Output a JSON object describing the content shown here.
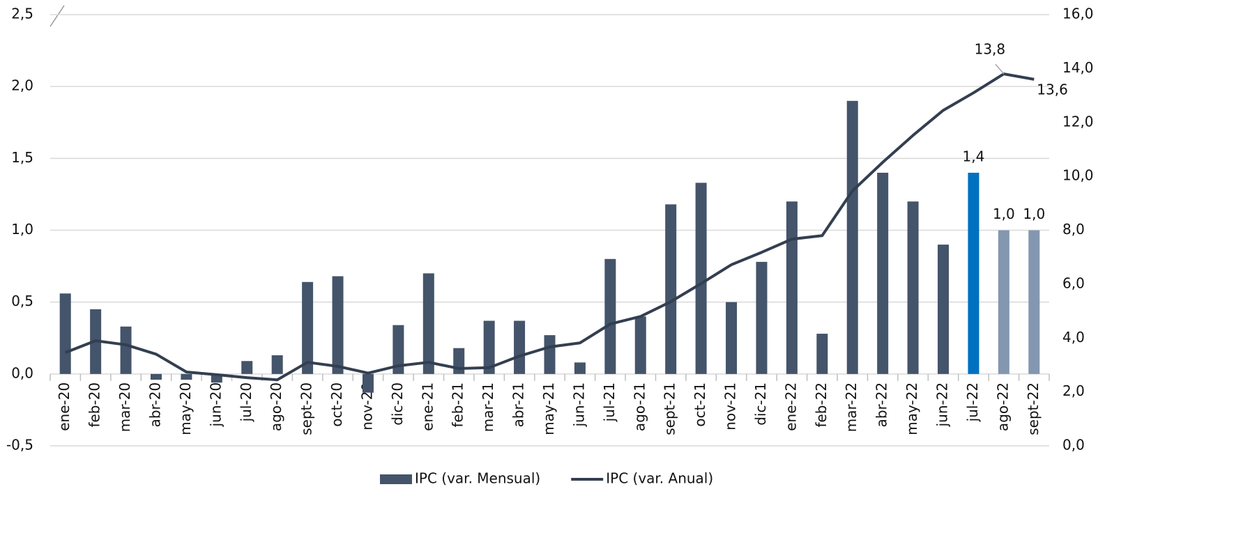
{
  "chart_data": {
    "type": "bar",
    "categories": [
      "ene-20",
      "feb-20",
      "mar-20",
      "abr-20",
      "may-20",
      "jun-20",
      "jul-20",
      "ago-20",
      "sept-20",
      "oct-20",
      "nov-20",
      "dic-20",
      "ene-21",
      "feb-21",
      "mar-21",
      "abr-21",
      "may-21",
      "jun-21",
      "jul-21",
      "ago-21",
      "sept-21",
      "oct-21",
      "nov-21",
      "dic-21",
      "ene-22",
      "feb-22",
      "mar-22",
      "abr-22",
      "may-22",
      "jun-22",
      "jul-22",
      "ago-22",
      "sept-22"
    ],
    "series": [
      {
        "name": "IPC (var. Mensual)",
        "type": "bar",
        "axis": "y",
        "color": "#44546a",
        "colors": [
          "#44546a",
          "#44546a",
          "#44546a",
          "#44546a",
          "#44546a",
          "#44546a",
          "#44546a",
          "#44546a",
          "#44546a",
          "#44546a",
          "#44546a",
          "#44546a",
          "#44546a",
          "#44546a",
          "#44546a",
          "#44546a",
          "#44546a",
          "#44546a",
          "#44546a",
          "#44546a",
          "#44546a",
          "#44546a",
          "#44546a",
          "#44546a",
          "#44546a",
          "#44546a",
          "#44546a",
          "#44546a",
          "#44546a",
          "#44546a",
          "#0070c0",
          "#8497b0",
          "#8497b0"
        ],
        "values": [
          0.56,
          0.45,
          0.33,
          -0.04,
          -0.04,
          -0.06,
          0.09,
          0.13,
          0.64,
          0.68,
          -0.13,
          0.34,
          0.7,
          0.18,
          0.37,
          0.37,
          0.27,
          0.08,
          0.8,
          0.4,
          1.18,
          1.33,
          0.5,
          0.78,
          1.2,
          0.28,
          1.9,
          1.4,
          1.2,
          0.9,
          1.4,
          1.0,
          1.0
        ],
        "value_labels": [
          null,
          null,
          null,
          null,
          null,
          null,
          null,
          null,
          null,
          null,
          null,
          null,
          null,
          null,
          null,
          null,
          null,
          null,
          null,
          null,
          null,
          null,
          null,
          null,
          null,
          null,
          null,
          null,
          null,
          null,
          "1,4",
          "1,0",
          "1,0"
        ]
      },
      {
        "name": "IPC (var. Anual)",
        "type": "line",
        "axis": "y2",
        "color": "#333f50",
        "values": [
          3.46,
          3.9,
          3.75,
          3.4,
          2.74,
          2.64,
          2.53,
          2.45,
          3.1,
          2.95,
          2.7,
          2.97,
          3.1,
          2.87,
          2.9,
          3.33,
          3.67,
          3.82,
          4.52,
          4.8,
          5.35,
          6.02,
          6.72,
          7.18,
          7.67,
          7.8,
          9.46,
          10.52,
          11.52,
          12.45,
          13.1,
          13.8,
          13.6
        ],
        "value_labels": [
          null,
          null,
          null,
          null,
          null,
          null,
          null,
          null,
          null,
          null,
          null,
          null,
          null,
          null,
          null,
          null,
          null,
          null,
          null,
          null,
          null,
          null,
          null,
          null,
          null,
          null,
          null,
          null,
          null,
          null,
          null,
          "13,8",
          "13,6"
        ]
      }
    ],
    "ylim": [
      -0.5,
      2.5
    ],
    "yticks": [
      {
        "value": -0.5,
        "label": "-0,5"
      },
      {
        "value": 0,
        "label": "0,0"
      },
      {
        "value": 0.5,
        "label": "0,5"
      },
      {
        "value": 1,
        "label": "1,0"
      },
      {
        "value": 1.5,
        "label": "1,5"
      },
      {
        "value": 2,
        "label": "2,0"
      },
      {
        "value": 2.5,
        "label": "2,5"
      }
    ],
    "y2lim": [
      0,
      16
    ],
    "y2ticks": [
      {
        "value": 0,
        "label": "0,0"
      },
      {
        "value": 2,
        "label": "2,0"
      },
      {
        "value": 4,
        "label": "4,0"
      },
      {
        "value": 6,
        "label": "6,0"
      },
      {
        "value": 8,
        "label": "8,0"
      },
      {
        "value": 10,
        "label": "10,0"
      },
      {
        "value": 12,
        "label": "12,0"
      },
      {
        "value": 14,
        "label": "14,0"
      },
      {
        "value": 16,
        "label": "16,0"
      }
    ],
    "grid": true,
    "legend": "bottom"
  }
}
